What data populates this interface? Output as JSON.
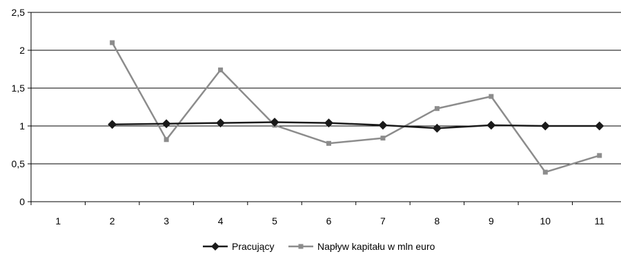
{
  "chart_data": {
    "type": "line",
    "title": "",
    "xlabel": "",
    "ylabel": "",
    "categories": [
      "1",
      "2",
      "3",
      "4",
      "5",
      "6",
      "7",
      "8",
      "9",
      "10",
      "11"
    ],
    "ylim": [
      0,
      2.5
    ],
    "yticks": [
      0,
      0.5,
      1,
      1.5,
      2,
      2.5
    ],
    "ytick_labels": [
      "0",
      "0,5",
      "1",
      "1,5",
      "2",
      "2,5"
    ],
    "grid": "horizontal",
    "legend_position": "bottom",
    "series": [
      {
        "name": "Pracujący",
        "color": "#1a1a1a",
        "marker": "diamond",
        "values": [
          null,
          1.02,
          1.03,
          1.04,
          1.05,
          1.04,
          1.01,
          0.97,
          1.01,
          1.0,
          1.0
        ]
      },
      {
        "name": "Napływ kapitału w mln euro",
        "color": "#8c8c8c",
        "marker": "square",
        "values": [
          null,
          2.1,
          0.82,
          1.74,
          1.01,
          0.77,
          0.84,
          1.23,
          1.39,
          0.39,
          0.61
        ]
      }
    ]
  }
}
